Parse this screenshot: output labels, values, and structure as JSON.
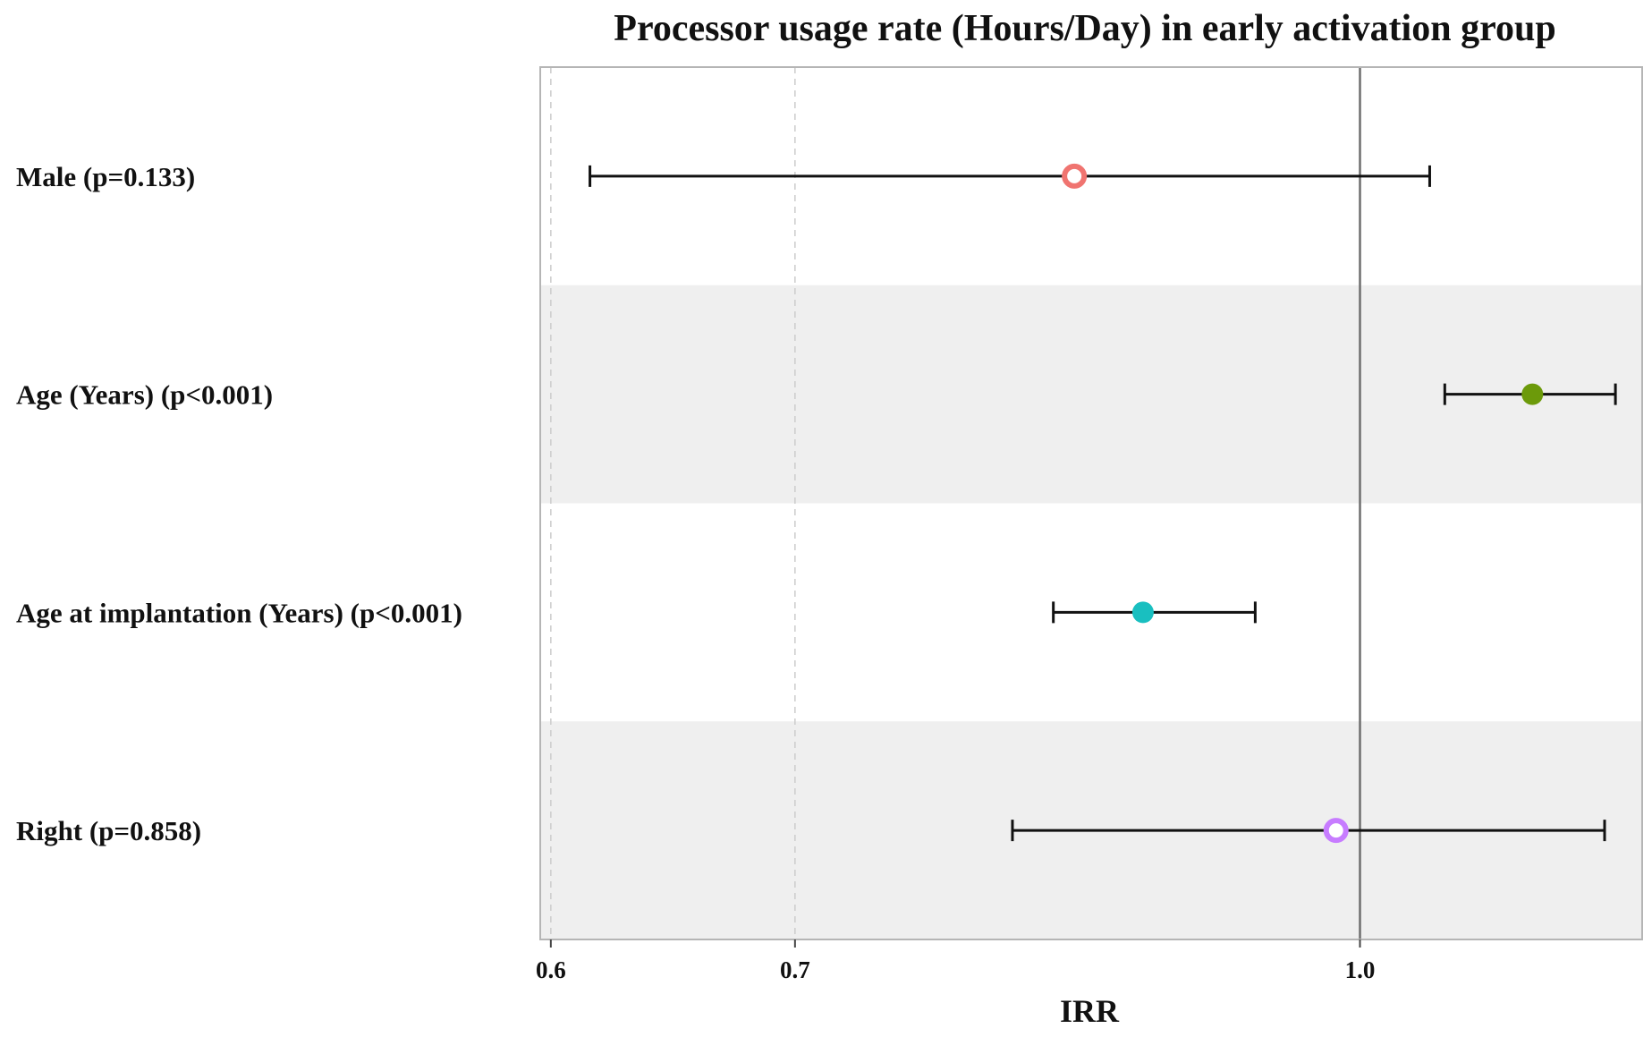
{
  "chart_data": {
    "type": "forest",
    "title": "Processor usage rate (Hours/Day) in early activation group",
    "xlabel": "IRR",
    "x_scale": "log",
    "xlim": [
      0.596,
      1.195
    ],
    "x_ticks": [
      {
        "value": 0.6,
        "label": "0.6"
      },
      {
        "value": 0.7,
        "label": "0.7"
      },
      {
        "value": 1.0,
        "label": "1.0"
      }
    ],
    "reference_line": 1.0,
    "grid": "dashed vertical minor lines at 0.6 and 0.7",
    "row_band_colors": [
      "#ffffff",
      "#efefef"
    ],
    "rows": [
      {
        "label": "Male (p=0.133)",
        "estimate": 0.835,
        "lower": 0.615,
        "upper": 1.045,
        "color": "#f07470",
        "marker": "hollow"
      },
      {
        "label": "Age (Years) (p<0.001)",
        "estimate": 1.115,
        "lower": 1.055,
        "upper": 1.175,
        "color": "#6c9a0a",
        "marker": "filled"
      },
      {
        "label": "Age at implantation (Years) (p<0.001)",
        "estimate": 0.872,
        "lower": 0.824,
        "upper": 0.936,
        "color": "#19bfc0",
        "marker": "filled"
      },
      {
        "label": "Right (p=0.858)",
        "estimate": 0.985,
        "lower": 0.803,
        "upper": 1.167,
        "color": "#c77cff",
        "marker": "hollow"
      }
    ]
  }
}
